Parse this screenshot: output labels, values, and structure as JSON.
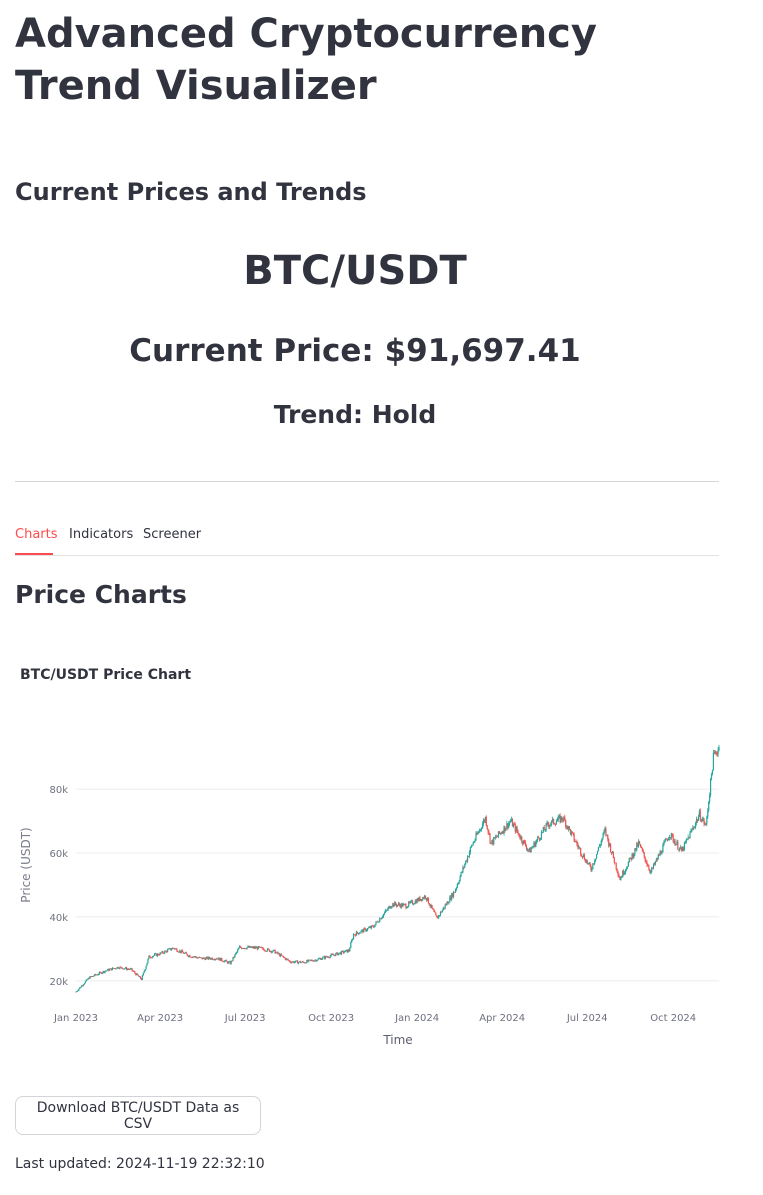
{
  "page": {
    "title": "Advanced Cryptocurrency Trend Visualizer",
    "section_title": "Current Prices and Trends",
    "symbol": "BTC/USDT",
    "current_price": "Current Price: $91,697.41",
    "trend": "Trend: Hold"
  },
  "tabs": [
    {
      "label": "Charts",
      "active": true
    },
    {
      "label": "Indicators",
      "active": false
    },
    {
      "label": "Screener",
      "active": false
    }
  ],
  "charts_section": {
    "heading": "Price Charts"
  },
  "chart_data": {
    "type": "candlestick",
    "title": "BTC/USDT Price Chart",
    "xlabel": "Time",
    "ylabel": "Price (USDT)",
    "x_ticks": [
      "Jan 2023",
      "Apr 2023",
      "Jul 2023",
      "Oct 2023",
      "Jan 2024",
      "Apr 2024",
      "Jul 2024",
      "Oct 2024"
    ],
    "y_ticks": [
      "20k",
      "40k",
      "60k",
      "80k"
    ],
    "y_tick_values": [
      20000,
      40000,
      60000,
      80000
    ],
    "x_range": [
      "2023-01-01",
      "2024-11-19"
    ],
    "y_range": [
      14000,
      96000
    ],
    "grid": "horizontal",
    "increasing_color": "#26a69a",
    "decreasing_color": "#ef5350",
    "series": [
      {
        "date": "2023-01-01",
        "close": 16600
      },
      {
        "date": "2023-01-15",
        "close": 21000
      },
      {
        "date": "2023-02-01",
        "close": 23100
      },
      {
        "date": "2023-02-15",
        "close": 24300
      },
      {
        "date": "2023-03-01",
        "close": 23500
      },
      {
        "date": "2023-03-12",
        "close": 20500
      },
      {
        "date": "2023-03-20",
        "close": 27500
      },
      {
        "date": "2023-04-01",
        "close": 28500
      },
      {
        "date": "2023-04-15",
        "close": 30300
      },
      {
        "date": "2023-05-01",
        "close": 28000
      },
      {
        "date": "2023-05-15",
        "close": 27000
      },
      {
        "date": "2023-06-01",
        "close": 27100
      },
      {
        "date": "2023-06-15",
        "close": 25500
      },
      {
        "date": "2023-06-25",
        "close": 30500
      },
      {
        "date": "2023-07-15",
        "close": 30300
      },
      {
        "date": "2023-08-01",
        "close": 29200
      },
      {
        "date": "2023-08-18",
        "close": 26000
      },
      {
        "date": "2023-09-01",
        "close": 25800
      },
      {
        "date": "2023-09-15",
        "close": 26600
      },
      {
        "date": "2023-10-01",
        "close": 27900
      },
      {
        "date": "2023-10-20",
        "close": 29500
      },
      {
        "date": "2023-10-25",
        "close": 34500
      },
      {
        "date": "2023-11-15",
        "close": 37000
      },
      {
        "date": "2023-12-05",
        "close": 44000
      },
      {
        "date": "2023-12-20",
        "close": 43500
      },
      {
        "date": "2024-01-10",
        "close": 46500
      },
      {
        "date": "2024-01-22",
        "close": 39500
      },
      {
        "date": "2024-02-10",
        "close": 48000
      },
      {
        "date": "2024-02-28",
        "close": 62000
      },
      {
        "date": "2024-03-14",
        "close": 71000
      },
      {
        "date": "2024-03-20",
        "close": 63000
      },
      {
        "date": "2024-04-10",
        "close": 70000
      },
      {
        "date": "2024-04-30",
        "close": 60500
      },
      {
        "date": "2024-05-20",
        "close": 69000
      },
      {
        "date": "2024-06-05",
        "close": 71000
      },
      {
        "date": "2024-06-24",
        "close": 60500
      },
      {
        "date": "2024-07-05",
        "close": 55000
      },
      {
        "date": "2024-07-20",
        "close": 67000
      },
      {
        "date": "2024-08-05",
        "close": 52000
      },
      {
        "date": "2024-08-25",
        "close": 63000
      },
      {
        "date": "2024-09-07",
        "close": 54000
      },
      {
        "date": "2024-09-27",
        "close": 66000
      },
      {
        "date": "2024-10-10",
        "close": 60500
      },
      {
        "date": "2024-10-29",
        "close": 72000
      },
      {
        "date": "2024-11-05",
        "close": 68500
      },
      {
        "date": "2024-11-13",
        "close": 90000
      },
      {
        "date": "2024-11-19",
        "close": 93000
      }
    ]
  },
  "download": {
    "label": "Download BTC/USDT Data as CSV"
  },
  "footer": {
    "last_updated": "Last updated: 2024-11-19 22:32:10"
  }
}
